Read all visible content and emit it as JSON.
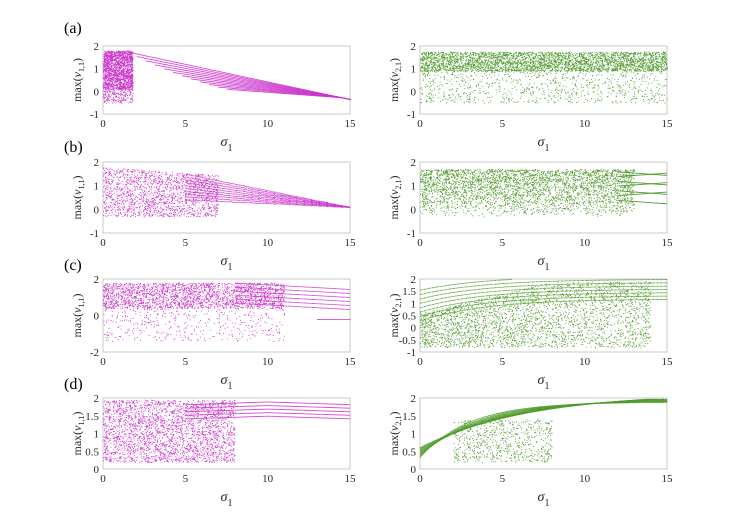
{
  "colors": {
    "left_series": "#cc33cc",
    "right_series": "#4e9a2a"
  },
  "chart_data": [
    {
      "id": "a-left",
      "row_label": "(a)",
      "type": "scatter",
      "xlabel_base": "σ",
      "xlabel_sub": "1",
      "ylabel_pre": "max(",
      "ylabel_var": "v",
      "ylabel_sub": "1,1",
      "ylabel_post": ")",
      "xlim": [
        0,
        15
      ],
      "ylim": [
        -1,
        2
      ],
      "xticks": [
        "0",
        "5",
        "10",
        "15"
      ],
      "yticks": [
        "2",
        "1",
        "0",
        "-1"
      ]
    },
    {
      "id": "a-right",
      "row_label": "",
      "type": "scatter",
      "xlabel_base": "σ",
      "xlabel_sub": "1",
      "ylabel_pre": "max(",
      "ylabel_var": "v",
      "ylabel_sub": "2,1",
      "ylabel_post": ")",
      "xlim": [
        0,
        15
      ],
      "ylim": [
        -1,
        2
      ],
      "xticks": [
        "0",
        "5",
        "10",
        "15"
      ],
      "yticks": [
        "2",
        "1",
        "0",
        "-1"
      ]
    },
    {
      "id": "b-left",
      "row_label": "(b)",
      "type": "scatter",
      "xlabel_base": "σ",
      "xlabel_sub": "1",
      "ylabel_pre": "max(",
      "ylabel_var": "v",
      "ylabel_sub": "1,1",
      "ylabel_post": ")",
      "xlim": [
        0,
        15
      ],
      "ylim": [
        -1,
        2
      ],
      "xticks": [
        "0",
        "5",
        "10",
        "15"
      ],
      "yticks": [
        "2",
        "1",
        "0",
        "-1"
      ]
    },
    {
      "id": "b-right",
      "row_label": "",
      "type": "scatter",
      "xlabel_base": "σ",
      "xlabel_sub": "1",
      "ylabel_pre": "max(",
      "ylabel_var": "v",
      "ylabel_sub": "2,1",
      "ylabel_post": ")",
      "xlim": [
        0,
        15
      ],
      "ylim": [
        -1,
        2
      ],
      "xticks": [
        "0",
        "5",
        "10",
        "15"
      ],
      "yticks": [
        "2",
        "1",
        "0",
        "-1"
      ]
    },
    {
      "id": "c-left",
      "row_label": "(c)",
      "type": "scatter",
      "xlabel_base": "σ",
      "xlabel_sub": "1",
      "ylabel_pre": "max(",
      "ylabel_var": "v",
      "ylabel_sub": "1,1",
      "ylabel_post": ")",
      "xlim": [
        0,
        15
      ],
      "ylim": [
        -2,
        2
      ],
      "xticks": [
        "0",
        "5",
        "10",
        "15"
      ],
      "yticks": [
        "2",
        "0",
        "-2"
      ]
    },
    {
      "id": "c-right",
      "row_label": "",
      "type": "scatter",
      "xlabel_base": "σ",
      "xlabel_sub": "1",
      "ylabel_pre": "max(",
      "ylabel_var": "v",
      "ylabel_sub": "2,1",
      "ylabel_post": ")",
      "xlim": [
        0,
        15
      ],
      "ylim": [
        -1,
        2
      ],
      "xticks": [
        "0",
        "5",
        "10",
        "15"
      ],
      "yticks": [
        "2",
        "1.5",
        "1",
        "0.5",
        "0",
        "-0.5",
        "-1"
      ]
    },
    {
      "id": "d-left",
      "row_label": "(d)",
      "type": "scatter",
      "xlabel_base": "σ",
      "xlabel_sub": "1",
      "ylabel_pre": "max(",
      "ylabel_var": "v",
      "ylabel_sub": "1,1",
      "ylabel_post": ")",
      "xlim": [
        0,
        15
      ],
      "ylim": [
        0,
        2
      ],
      "xticks": [
        "0",
        "5",
        "10",
        "15"
      ],
      "yticks": [
        "2",
        "1.5",
        "1",
        "0.5",
        "0"
      ]
    },
    {
      "id": "d-right",
      "row_label": "",
      "type": "scatter",
      "xlabel_base": "σ",
      "xlabel_sub": "1",
      "ylabel_pre": "max(",
      "ylabel_var": "v",
      "ylabel_sub": "2,1",
      "ylabel_post": ")",
      "xlim": [
        0,
        15
      ],
      "ylim": [
        0,
        2
      ],
      "xticks": [
        "0",
        "5",
        "10",
        "15"
      ],
      "yticks": [
        "2",
        "1.5",
        "1",
        "0.5",
        "0"
      ]
    }
  ]
}
